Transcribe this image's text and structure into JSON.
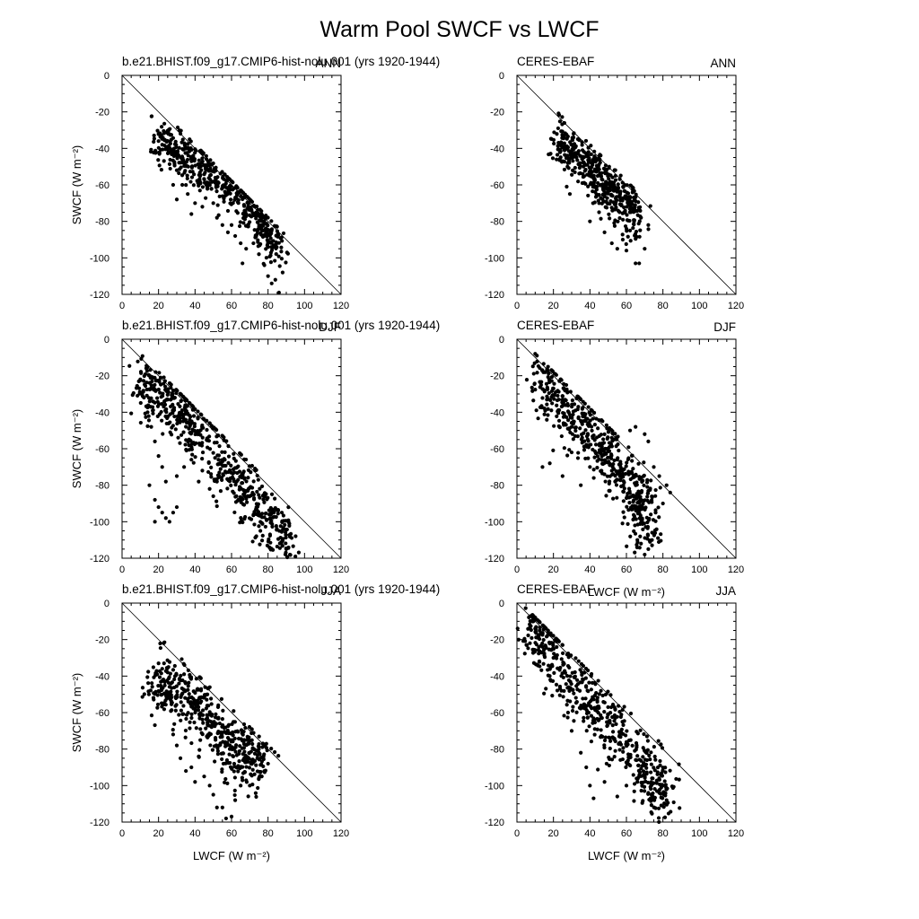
{
  "figure": {
    "title": "Warm Pool SWCF vs LWCF"
  },
  "chart_data": [
    {
      "type": "scatter",
      "left_label": "b.e21.BHIST.f09_g17.CMIP6-hist-nolu.001 (yrs 1920-1944)",
      "right_label": "ANN",
      "xlabel": "",
      "ylabel": "SWCF (W m⁻²)",
      "xlim": [
        0,
        120
      ],
      "ylim": [
        -120,
        0
      ],
      "x_ticks": [
        "0",
        "20",
        "40",
        "60",
        "80",
        "100",
        "120"
      ],
      "y_ticks": [
        "0",
        "-20",
        "-40",
        "-60",
        "-80",
        "-100",
        "-120"
      ],
      "reference_line": "y = -x",
      "cloud": {
        "anchors": [
          [
            20,
            -36
          ],
          [
            30,
            -41
          ],
          [
            40,
            -48
          ],
          [
            50,
            -56
          ],
          [
            60,
            -64
          ],
          [
            70,
            -74
          ],
          [
            80,
            -86
          ],
          [
            87,
            -96
          ]
        ],
        "spread": 6,
        "n": 520,
        "seed": 11
      },
      "points": [
        [
          20,
          -36
        ],
        [
          22,
          -38
        ],
        [
          28,
          -60
        ],
        [
          30,
          -68
        ],
        [
          33,
          -60
        ],
        [
          36,
          -65
        ],
        [
          38,
          -76
        ],
        [
          40,
          -70
        ],
        [
          44,
          -72
        ],
        [
          50,
          -70
        ],
        [
          52,
          -78
        ],
        [
          55,
          -82
        ],
        [
          58,
          -86
        ],
        [
          60,
          -82
        ],
        [
          62,
          -88
        ],
        [
          65,
          -92
        ],
        [
          66,
          -103
        ],
        [
          68,
          -95
        ],
        [
          72,
          -92
        ],
        [
          75,
          -98
        ],
        [
          78,
          -104
        ],
        [
          80,
          -110
        ],
        [
          82,
          -114
        ],
        [
          84,
          -112
        ],
        [
          86,
          -119
        ],
        [
          88,
          -108
        ]
      ]
    },
    {
      "type": "scatter",
      "left_label": "CERES-EBAF",
      "right_label": "ANN",
      "xlabel": "",
      "ylabel": "",
      "xlim": [
        0,
        120
      ],
      "ylim": [
        -120,
        0
      ],
      "x_ticks": [
        "0",
        "20",
        "40",
        "60",
        "80",
        "100",
        "120"
      ],
      "y_ticks": [
        "0",
        "-20",
        "-40",
        "-60",
        "-80",
        "-100",
        "-120"
      ],
      "reference_line": "y = -x",
      "cloud": {
        "anchors": [
          [
            21,
            -35
          ],
          [
            30,
            -42
          ],
          [
            40,
            -52
          ],
          [
            50,
            -62
          ],
          [
            60,
            -70
          ],
          [
            66,
            -78
          ]
        ],
        "spread": 7,
        "n": 480,
        "seed": 23
      },
      "points": [
        [
          31,
          -32
        ],
        [
          31,
          -34
        ],
        [
          29,
          -65
        ],
        [
          40,
          -80
        ],
        [
          48,
          -86
        ],
        [
          52,
          -92
        ],
        [
          55,
          -95
        ],
        [
          58,
          -90
        ],
        [
          62,
          -85
        ],
        [
          65,
          -103
        ],
        [
          67,
          -103
        ],
        [
          68,
          -78
        ],
        [
          72,
          -82
        ],
        [
          70,
          -95
        ],
        [
          60,
          -96
        ],
        [
          45,
          -75
        ]
      ]
    },
    {
      "type": "scatter",
      "left_label": "b.e21.BHIST.f09_g17.CMIP6-hist-nolu.001 (yrs 1920-1944)",
      "right_label": "DJF",
      "xlabel": "",
      "ylabel": "SWCF (W m⁻²)",
      "xlim": [
        0,
        120
      ],
      "ylim": [
        -120,
        0
      ],
      "x_ticks": [
        "0",
        "20",
        "40",
        "60",
        "80",
        "100",
        "120"
      ],
      "y_ticks": [
        "0",
        "-20",
        "-40",
        "-60",
        "-80",
        "-100",
        "-120"
      ],
      "reference_line": "y = -x",
      "cloud": {
        "anchors": [
          [
            10,
            -25
          ],
          [
            15,
            -26
          ],
          [
            25,
            -34
          ],
          [
            35,
            -44
          ],
          [
            45,
            -55
          ],
          [
            55,
            -66
          ],
          [
            65,
            -80
          ],
          [
            75,
            -92
          ],
          [
            85,
            -104
          ],
          [
            92,
            -115
          ]
        ],
        "spread": 8,
        "n": 600,
        "seed": 37
      },
      "points": [
        [
          10,
          -22
        ],
        [
          12,
          -32
        ],
        [
          14,
          -40
        ],
        [
          16,
          -48
        ],
        [
          18,
          -56
        ],
        [
          20,
          -64
        ],
        [
          22,
          -70
        ],
        [
          15,
          -80
        ],
        [
          18,
          -88
        ],
        [
          20,
          -92
        ],
        [
          22,
          -95
        ],
        [
          24,
          -98
        ],
        [
          26,
          -100
        ],
        [
          28,
          -95
        ],
        [
          30,
          -92
        ],
        [
          18,
          -100
        ],
        [
          24,
          -78
        ],
        [
          30,
          -75
        ],
        [
          34,
          -70
        ],
        [
          38,
          -66
        ],
        [
          42,
          -78
        ],
        [
          44,
          -72
        ],
        [
          48,
          -82
        ],
        [
          50,
          -86
        ],
        [
          52,
          -78
        ],
        [
          90,
          -115
        ],
        [
          92,
          -118
        ],
        [
          95,
          -119
        ]
      ]
    },
    {
      "type": "scatter",
      "left_label": "CERES-EBAF",
      "right_label": "DJF",
      "xlabel": "LWCF (W m⁻²)",
      "ylabel": "",
      "xlim": [
        0,
        120
      ],
      "ylim": [
        -120,
        0
      ],
      "x_ticks": [
        "0",
        "20",
        "40",
        "60",
        "80",
        "100",
        "120"
      ],
      "y_ticks": [
        "0",
        "-20",
        "-40",
        "-60",
        "-80",
        "-100",
        "-120"
      ],
      "reference_line": "y = -x",
      "cloud": {
        "anchors": [
          [
            10,
            -22
          ],
          [
            20,
            -30
          ],
          [
            30,
            -40
          ],
          [
            40,
            -52
          ],
          [
            50,
            -64
          ],
          [
            60,
            -76
          ],
          [
            68,
            -90
          ],
          [
            72,
            -104
          ]
        ],
        "spread": 9,
        "n": 560,
        "seed": 41
      },
      "points": [
        [
          14,
          -70
        ],
        [
          18,
          -68
        ],
        [
          25,
          -75
        ],
        [
          30,
          -62
        ],
        [
          35,
          -80
        ],
        [
          40,
          -70
        ],
        [
          45,
          -62
        ],
        [
          62,
          -50
        ],
        [
          65,
          -48
        ],
        [
          70,
          -52
        ],
        [
          72,
          -56
        ],
        [
          75,
          -70
        ],
        [
          78,
          -75
        ],
        [
          82,
          -80
        ],
        [
          84,
          -84
        ],
        [
          80,
          -90
        ],
        [
          76,
          -95
        ],
        [
          70,
          -118
        ],
        [
          72,
          -115
        ],
        [
          74,
          -110
        ],
        [
          66,
          -110
        ],
        [
          68,
          -112
        ]
      ]
    },
    {
      "type": "scatter",
      "left_label": "b.e21.BHIST.f09_g17.CMIP6-hist-nolu.001 (yrs 1920-1944)",
      "right_label": "JJA",
      "xlabel": "LWCF (W m⁻²)",
      "ylabel": "SWCF (W m⁻²)",
      "xlim": [
        0,
        120
      ],
      "ylim": [
        -120,
        0
      ],
      "x_ticks": [
        "0",
        "20",
        "40",
        "60",
        "80",
        "100",
        "120"
      ],
      "y_ticks": [
        "0",
        "-20",
        "-40",
        "-60",
        "-80",
        "-100",
        "-120"
      ],
      "reference_line": "y = -x",
      "cloud": {
        "anchors": [
          [
            18,
            -45
          ],
          [
            25,
            -48
          ],
          [
            35,
            -50
          ],
          [
            45,
            -60
          ],
          [
            55,
            -72
          ],
          [
            62,
            -80
          ],
          [
            70,
            -84
          ],
          [
            78,
            -86
          ]
        ],
        "spread": 9,
        "n": 500,
        "seed": 53
      },
      "points": [
        [
          20,
          -33
        ],
        [
          23,
          -33
        ],
        [
          25,
          -38
        ],
        [
          22,
          -36
        ],
        [
          28,
          -72
        ],
        [
          30,
          -78
        ],
        [
          32,
          -85
        ],
        [
          35,
          -92
        ],
        [
          38,
          -90
        ],
        [
          40,
          -98
        ],
        [
          42,
          -84
        ],
        [
          45,
          -95
        ],
        [
          48,
          -100
        ],
        [
          50,
          -105
        ],
        [
          52,
          -112
        ],
        [
          55,
          -112
        ],
        [
          57,
          -118
        ],
        [
          60,
          -117
        ],
        [
          62,
          -108
        ],
        [
          65,
          -100
        ],
        [
          70,
          -100
        ],
        [
          75,
          -96
        ],
        [
          78,
          -92
        ],
        [
          80,
          -88
        ]
      ]
    },
    {
      "type": "scatter",
      "left_label": "CERES-EBAF",
      "right_label": "JJA",
      "xlabel": "LWCF (W m⁻²)",
      "ylabel": "",
      "xlim": [
        0,
        120
      ],
      "ylim": [
        -120,
        0
      ],
      "x_ticks": [
        "0",
        "20",
        "40",
        "60",
        "80",
        "100",
        "120"
      ],
      "y_ticks": [
        "0",
        "-20",
        "-40",
        "-60",
        "-80",
        "-100",
        "-120"
      ],
      "reference_line": "y = -x",
      "cloud": {
        "anchors": [
          [
            8,
            -12
          ],
          [
            15,
            -22
          ],
          [
            25,
            -38
          ],
          [
            35,
            -52
          ],
          [
            45,
            -60
          ],
          [
            55,
            -72
          ],
          [
            65,
            -86
          ],
          [
            75,
            -98
          ],
          [
            82,
            -106
          ]
        ],
        "spread": 9,
        "n": 560,
        "seed": 67
      },
      "points": [
        [
          9,
          -10
        ],
        [
          10,
          -14
        ],
        [
          12,
          -18
        ],
        [
          14,
          -24
        ],
        [
          20,
          -30
        ],
        [
          28,
          -60
        ],
        [
          30,
          -70
        ],
        [
          35,
          -82
        ],
        [
          38,
          -90
        ],
        [
          40,
          -100
        ],
        [
          42,
          -107
        ],
        [
          48,
          -98
        ],
        [
          55,
          -106
        ],
        [
          60,
          -100
        ],
        [
          66,
          -98
        ],
        [
          72,
          -104
        ],
        [
          78,
          -104
        ],
        [
          82,
          -108
        ],
        [
          80,
          -100
        ],
        [
          74,
          -96
        ]
      ]
    }
  ]
}
